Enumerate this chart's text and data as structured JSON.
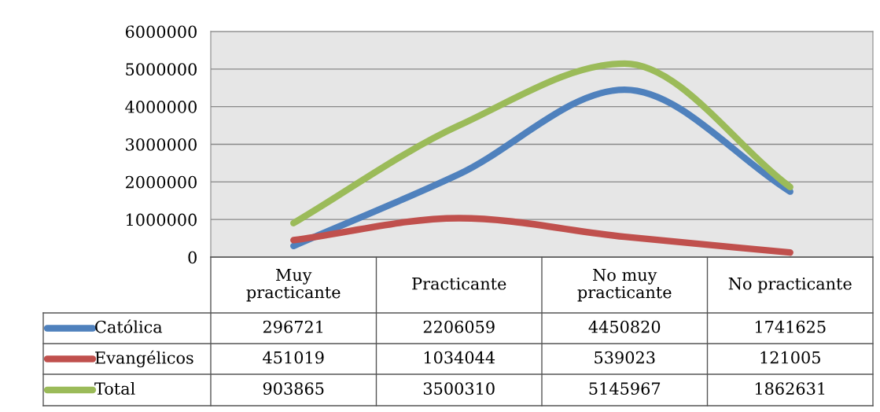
{
  "chart_data": {
    "type": "line",
    "categories": [
      "Muy practicante",
      "Practicante",
      "No muy practicante",
      "No practicante"
    ],
    "series": [
      {
        "name": "Católica",
        "color": "#4f81bd",
        "values": [
          296721,
          2206059,
          4450820,
          1741625
        ]
      },
      {
        "name": "Evangélicos",
        "color": "#c0504d",
        "values": [
          451019,
          1034044,
          539023,
          121005
        ]
      },
      {
        "name": "Total",
        "color": "#9bbb59",
        "values": [
          903865,
          3500310,
          5145967,
          1862631
        ]
      }
    ],
    "ylim": [
      0,
      6000000
    ],
    "yticks": [
      0,
      1000000,
      2000000,
      3000000,
      4000000,
      5000000,
      6000000
    ],
    "grid": "y",
    "data_labels": true,
    "legend": "bottom left",
    "marker": "none",
    "line_style": "solid"
  }
}
